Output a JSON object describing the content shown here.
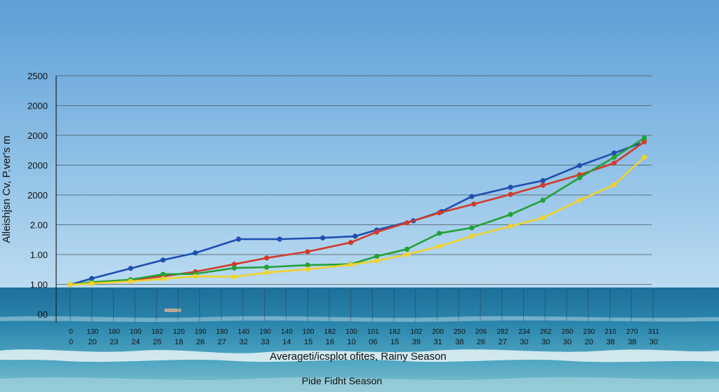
{
  "chart_data": {
    "type": "line",
    "title": "",
    "ylabel": "Alleishjsn Cv, P.ver's m",
    "xlabel": "Averageti/icsplot ofites, Rainy Season",
    "subtitle": "Pide Fidht Season",
    "y_tick_labels": [
      "00",
      "1.00",
      "1.00",
      "2.00",
      "2000",
      "2000",
      "2000",
      "2000",
      "2500"
    ],
    "x_tick_labels_row1": [
      "0",
      "130",
      "180",
      "100",
      "182",
      "120",
      "190",
      "190",
      "140",
      "190",
      "140",
      "100",
      "182",
      "100",
      "101",
      "182",
      "102",
      "200",
      "250",
      "206",
      "282",
      "234",
      "262",
      "260",
      "230",
      "210",
      "270",
      "311"
    ],
    "x_tick_labels_row2": [
      "0",
      "20",
      "23",
      "24",
      "25",
      "18",
      "26",
      "27",
      "32",
      "33",
      "14",
      "15",
      "16",
      "10",
      "06",
      "15",
      "39",
      "31",
      "38",
      "26",
      "27",
      "30",
      "30",
      "30",
      "20",
      "38",
      "38",
      "30"
    ],
    "ylim": [
      0,
      2500
    ],
    "grid": true,
    "legend": "none",
    "series": [
      {
        "color": "#1f4fb0",
        "x": [
          0,
          1,
          2.8,
          4.3,
          5.8,
          7.8,
          9.7,
          11.7,
          13.2,
          14.2,
          15.9,
          17.2,
          18.6,
          20.4,
          21.9,
          23.6,
          25.2,
          26.4
        ],
        "values": [
          0,
          75,
          195,
          295,
          380,
          545,
          545,
          560,
          580,
          655,
          765,
          875,
          1055,
          1165,
          1245,
          1425,
          1575,
          1690
        ]
      },
      {
        "color": "#d23a2a",
        "x": [
          0,
          1,
          2.8,
          4.3,
          5.8,
          7.6,
          9.1,
          11,
          13,
          14.2,
          15.6,
          17.1,
          18.7,
          20.4,
          21.9,
          23.6,
          25.2,
          26.6
        ],
        "values": [
          0,
          20,
          55,
          100,
          155,
          245,
          320,
          395,
          505,
          630,
          740,
          860,
          965,
          1080,
          1190,
          1315,
          1455,
          1710
        ]
      },
      {
        "color": "#24a037",
        "x": [
          0,
          1,
          2.8,
          4.3,
          5.8,
          7.6,
          9.1,
          11,
          13,
          14.2,
          15.6,
          17.1,
          18.6,
          20.4,
          21.9,
          23.6,
          25.2,
          26.6
        ],
        "values": [
          0,
          30,
          60,
          125,
          130,
          200,
          210,
          235,
          245,
          340,
          425,
          615,
          680,
          840,
          1010,
          1280,
          1525,
          1755
        ]
      },
      {
        "color": "#f2d22b",
        "x": [
          0,
          1,
          2.8,
          4.3,
          5.8,
          7.6,
          9.1,
          11,
          13,
          14.2,
          15.6,
          17.1,
          18.6,
          20.4,
          21.9,
          23.6,
          25.2,
          26.6
        ],
        "values": [
          0,
          15,
          40,
          70,
          100,
          95,
          145,
          185,
          240,
          285,
          360,
          460,
          580,
          700,
          800,
          1010,
          1195,
          1525
        ]
      }
    ]
  }
}
